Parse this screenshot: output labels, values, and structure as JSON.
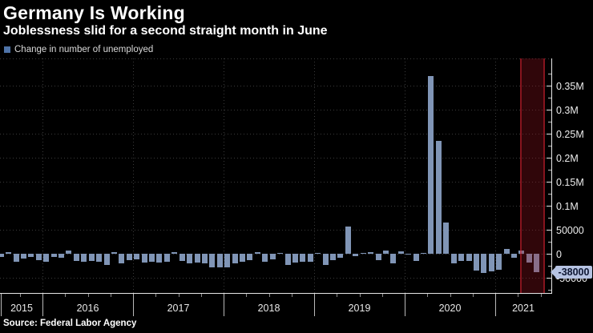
{
  "header": {
    "title": "Germany Is Working",
    "subtitle": "Joblessness slid for a second straight month in June"
  },
  "legend": {
    "label": "Change in number of unemployed"
  },
  "source": {
    "label": "Source: Federal Labor Agency"
  },
  "colors": {
    "background": "#000000",
    "bar": "#8095b6",
    "legend_marker": "#4f74a8",
    "highlight_band": "#9e1422",
    "axis": "#e6e6e6",
    "gridline": "#3a3a3a",
    "callout_background": "#b6c3e2",
    "callout_text": "#0c1531",
    "text": "#ffffff"
  },
  "chart_data": {
    "type": "bar",
    "title": "Germany Is Working",
    "subtitle": "Joblessness slid for a second straight month in June",
    "legend_entries": [
      "Change in number of unemployed"
    ],
    "legend_position": "top-left",
    "axis_side": "right",
    "grid": true,
    "ylabel": "Change in number of unemployed",
    "ylim": [
      -82000,
      407000
    ],
    "x": [
      "2015-07",
      "2015-08",
      "2015-09",
      "2015-10",
      "2015-11",
      "2015-12",
      "2016-01",
      "2016-02",
      "2016-03",
      "2016-04",
      "2016-05",
      "2016-06",
      "2016-07",
      "2016-08",
      "2016-09",
      "2016-10",
      "2016-11",
      "2016-12",
      "2017-01",
      "2017-02",
      "2017-03",
      "2017-04",
      "2017-05",
      "2017-06",
      "2017-07",
      "2017-08",
      "2017-09",
      "2017-10",
      "2017-11",
      "2017-12",
      "2018-01",
      "2018-02",
      "2018-03",
      "2018-04",
      "2018-05",
      "2018-06",
      "2018-07",
      "2018-08",
      "2018-09",
      "2018-10",
      "2018-11",
      "2018-12",
      "2019-01",
      "2019-02",
      "2019-03",
      "2019-04",
      "2019-05",
      "2019-06",
      "2019-07",
      "2019-08",
      "2019-09",
      "2019-10",
      "2019-11",
      "2019-12",
      "2020-01",
      "2020-02",
      "2020-03",
      "2020-04",
      "2020-05",
      "2020-06",
      "2020-07",
      "2020-08",
      "2020-09",
      "2020-10",
      "2020-11",
      "2020-12",
      "2021-01",
      "2021-02",
      "2021-03",
      "2021-04",
      "2021-05",
      "2021-06"
    ],
    "values": [
      -6000,
      4000,
      -17000,
      -10000,
      -6000,
      -13000,
      -16000,
      -7000,
      -8000,
      6000,
      -15000,
      -16000,
      -15000,
      -16000,
      -23000,
      4000,
      -20000,
      -14000,
      -12000,
      -19000,
      -16000,
      -18000,
      -16000,
      3000,
      -15000,
      -20000,
      -18000,
      -20000,
      -28000,
      -29000,
      -28000,
      -20000,
      -17000,
      -14000,
      3000,
      -16000,
      -12000,
      2000,
      -23000,
      -18000,
      -16000,
      -16000,
      2000,
      -24000,
      -13000,
      -9000,
      57000,
      -5000,
      2000,
      4000,
      -14000,
      6000,
      -20000,
      5000,
      -2000,
      -15000,
      2000,
      370000,
      235000,
      65000,
      -20000,
      -15000,
      -15000,
      -35000,
      -40000,
      -37000,
      -34000,
      10000,
      -9000,
      6000,
      -19000,
      -38000
    ],
    "x_axis": {
      "year_labels": [
        "2015",
        "2016",
        "2017",
        "2018",
        "2019",
        "2020",
        "2021"
      ]
    },
    "y_axis": {
      "ticks": [
        {
          "value": 350000,
          "label": "0.35M"
        },
        {
          "value": 300000,
          "label": "0.3M"
        },
        {
          "value": 250000,
          "label": "0.25M"
        },
        {
          "value": 200000,
          "label": "0.2M"
        },
        {
          "value": 150000,
          "label": "0.15M"
        },
        {
          "value": 100000,
          "label": "0.1M"
        },
        {
          "value": 50000,
          "label": "50000"
        },
        {
          "value": 0,
          "label": "0"
        },
        {
          "value": -50000,
          "label": "-50000"
        }
      ],
      "minor_tick_step": 25000
    },
    "highlight": {
      "from": "2021-04",
      "to": "2021-06"
    },
    "last_value_label": "-38000"
  }
}
